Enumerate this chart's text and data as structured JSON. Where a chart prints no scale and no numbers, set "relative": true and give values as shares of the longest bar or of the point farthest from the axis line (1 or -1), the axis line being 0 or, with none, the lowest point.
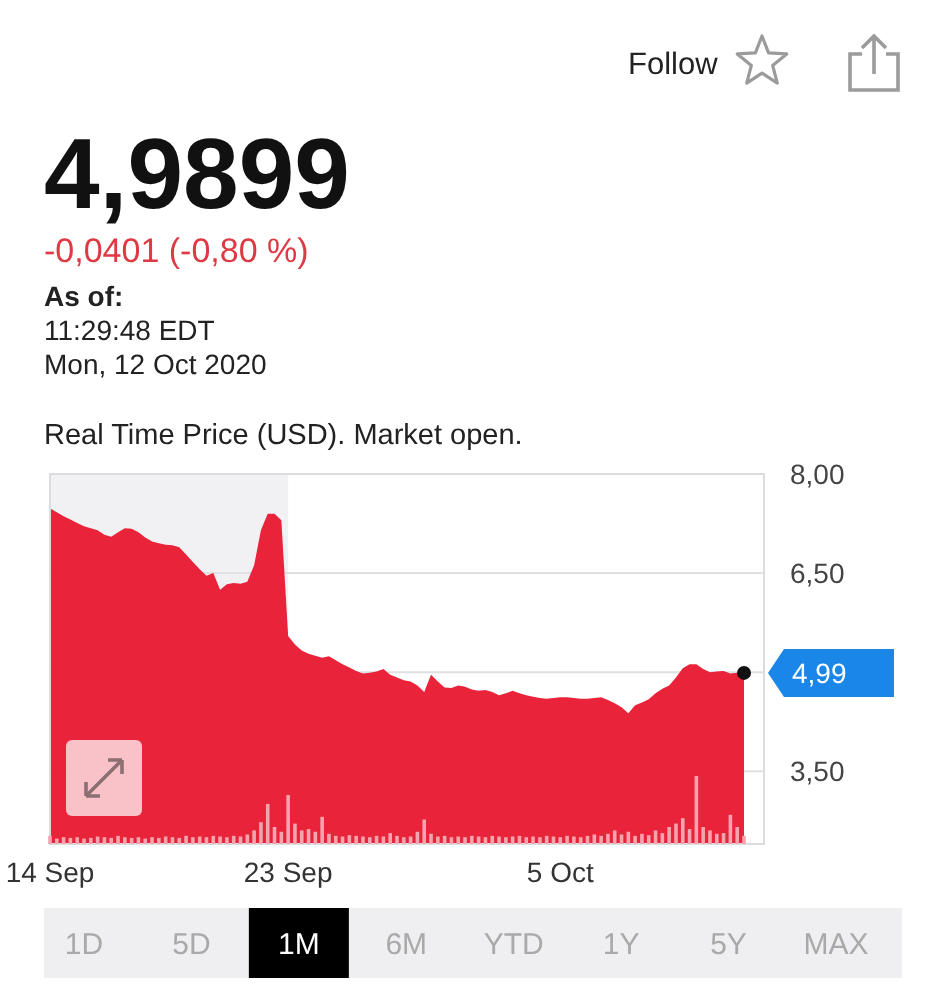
{
  "chart_data": [
    {
      "type": "area",
      "title": "4,9899",
      "subtitle": "-0,0401 (-0,80 %)",
      "categories": [
        "14 Sep",
        null,
        null,
        null,
        null,
        null,
        null,
        null,
        null,
        null,
        null,
        null,
        null,
        null,
        null,
        null,
        null,
        null,
        null,
        null,
        null,
        null,
        null,
        null,
        null,
        null,
        null,
        null,
        null,
        null,
        null,
        null,
        null,
        null,
        null,
        "23 Sep",
        null,
        null,
        null,
        null,
        null,
        null,
        null,
        null,
        null,
        null,
        null,
        null,
        null,
        null,
        null,
        null,
        null,
        null,
        null,
        null,
        null,
        null,
        null,
        null,
        null,
        null,
        null,
        null,
        null,
        null,
        null,
        null,
        null,
        null,
        null,
        null,
        null,
        null,
        null,
        "5 Oct",
        null,
        null,
        null,
        null,
        null,
        null,
        null,
        null,
        null,
        null,
        null,
        null,
        null,
        null,
        null,
        null,
        null,
        null,
        null,
        null,
        null,
        null,
        null,
        null,
        null,
        null,
        null
      ],
      "values": [
        7.48,
        7.42,
        7.36,
        7.31,
        7.26,
        7.21,
        7.18,
        7.15,
        7.08,
        7.05,
        7.12,
        7.18,
        7.17,
        7.12,
        7.04,
        6.98,
        6.95,
        6.93,
        6.92,
        6.89,
        6.78,
        6.67,
        6.56,
        6.46,
        6.5,
        6.25,
        6.33,
        6.35,
        6.34,
        6.37,
        6.62,
        7.15,
        7.4,
        7.4,
        7.3,
        5.55,
        5.42,
        5.33,
        5.28,
        5.25,
        5.22,
        5.24,
        5.18,
        5.12,
        5.07,
        5.02,
        4.98,
        4.99,
        5.01,
        5.05,
        4.96,
        4.92,
        4.88,
        4.86,
        4.8,
        4.7,
        4.96,
        4.86,
        4.77,
        4.76,
        4.8,
        4.78,
        4.74,
        4.72,
        4.73,
        4.7,
        4.65,
        4.68,
        4.72,
        4.68,
        4.65,
        4.63,
        4.61,
        4.6,
        4.61,
        4.62,
        4.62,
        4.61,
        4.6,
        4.6,
        4.61,
        4.62,
        4.58,
        4.53,
        4.47,
        4.38,
        4.5,
        4.54,
        4.59,
        4.68,
        4.75,
        4.8,
        4.92,
        5.06,
        5.12,
        5.12,
        5.05,
        5,
        5.01,
        5.02,
        4.98,
        4.99,
        4.99
      ],
      "color": "#e8152d",
      "ylim": [
        2.4,
        8
      ],
      "yticks": [
        {
          "value": 8,
          "label": "8,00"
        },
        {
          "value": 6.5,
          "label": "6,50"
        },
        {
          "value": 5,
          "label": null
        },
        {
          "value": 3.5,
          "label": "3,50"
        }
      ],
      "grid": "y",
      "bands": [
        {
          "axis": "x",
          "from": "14 Sep",
          "to": "23 Sep",
          "color": "#f1f1f4"
        }
      ],
      "annotations": [
        "As of:",
        "11:29:48 EDT",
        "Mon, 12 Oct 2020",
        "Real Time Price (USD). Market open.",
        "Follow",
        "1D",
        "5D",
        "1M",
        "6M",
        "YTD",
        "1Y",
        "5Y",
        "MAX",
        "4,99"
      ]
    },
    {
      "type": "bar",
      "categories": [
        null,
        null,
        null,
        null,
        null,
        null,
        null,
        null,
        null,
        null,
        null,
        null,
        null,
        null,
        null,
        null,
        null,
        null,
        null,
        null,
        null,
        null,
        null,
        null,
        null,
        null,
        null,
        null,
        null,
        null,
        null,
        null,
        null,
        null,
        null,
        null,
        null,
        null,
        null,
        null,
        null,
        null,
        null,
        null,
        null,
        null,
        null,
        null,
        null,
        null,
        null,
        null,
        null,
        null,
        null,
        null,
        null,
        null,
        null,
        null,
        null,
        null,
        null,
        null,
        null,
        null,
        null,
        null,
        null,
        null,
        null,
        null,
        null,
        null,
        null,
        null,
        null,
        null,
        null,
        null,
        null,
        null,
        null,
        null,
        null,
        null,
        null,
        null,
        null,
        null,
        null,
        null,
        null,
        null,
        null,
        null,
        null,
        null,
        null,
        null,
        null,
        null,
        null
      ],
      "values": [
        0.12,
        0.08,
        0.1,
        0.09,
        0.1,
        0.08,
        0.09,
        0.11,
        0.1,
        0.09,
        0.12,
        0.1,
        0.09,
        0.1,
        0.08,
        0.1,
        0.09,
        0.11,
        0.1,
        0.09,
        0.12,
        0.1,
        0.11,
        0.1,
        0.12,
        0.11,
        0.1,
        0.12,
        0.11,
        0.14,
        0.2,
        0.32,
        0.59,
        0.25,
        0.18,
        0.72,
        0.3,
        0.2,
        0.22,
        0.18,
        0.4,
        0.15,
        0.12,
        0.11,
        0.13,
        0.12,
        0.11,
        0.1,
        0.12,
        0.11,
        0.16,
        0.12,
        0.1,
        0.11,
        0.18,
        0.36,
        0.15,
        0.11,
        0.12,
        0.1,
        0.11,
        0.1,
        0.12,
        0.11,
        0.1,
        0.12,
        0.11,
        0.1,
        0.11,
        0.12,
        0.1,
        0.11,
        0.1,
        0.12,
        0.11,
        0.1,
        0.12,
        0.11,
        0.1,
        0.12,
        0.14,
        0.12,
        0.15,
        0.2,
        0.14,
        0.18,
        0.12,
        0.15,
        0.13,
        0.2,
        0.16,
        0.25,
        0.3,
        0.38,
        0.22,
        1,
        0.25,
        0.2,
        0.15,
        0.16,
        0.43,
        0.25,
        0.12
      ],
      "color": "#f4a4ae",
      "relative": true
    }
  ]
}
